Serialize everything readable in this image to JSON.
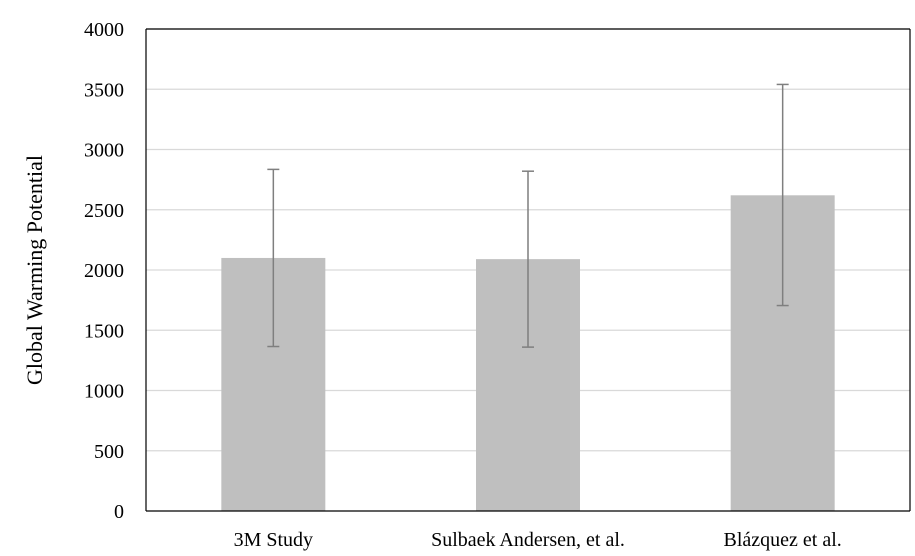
{
  "chart_data": {
    "type": "bar",
    "title": "",
    "xlabel": "",
    "ylabel": "Global Warming Potential",
    "categories": [
      "3M Study",
      "Sulbaek Andersen, et al.",
      "Blázquez et al."
    ],
    "values": [
      2100,
      2090,
      2620
    ],
    "error_high": [
      2835,
      2820,
      3540
    ],
    "error_low": [
      1365,
      1360,
      1705
    ],
    "ylim": [
      0,
      4000
    ],
    "yticks": [
      0,
      500,
      1000,
      1500,
      2000,
      2500,
      3000,
      3500,
      4000
    ],
    "grid": true,
    "legend": "none",
    "colors": {
      "bar": "#bfbfbf",
      "error_bar": "#7f7f7f",
      "grid": "#d9d9d9",
      "axis": "#000000"
    }
  }
}
